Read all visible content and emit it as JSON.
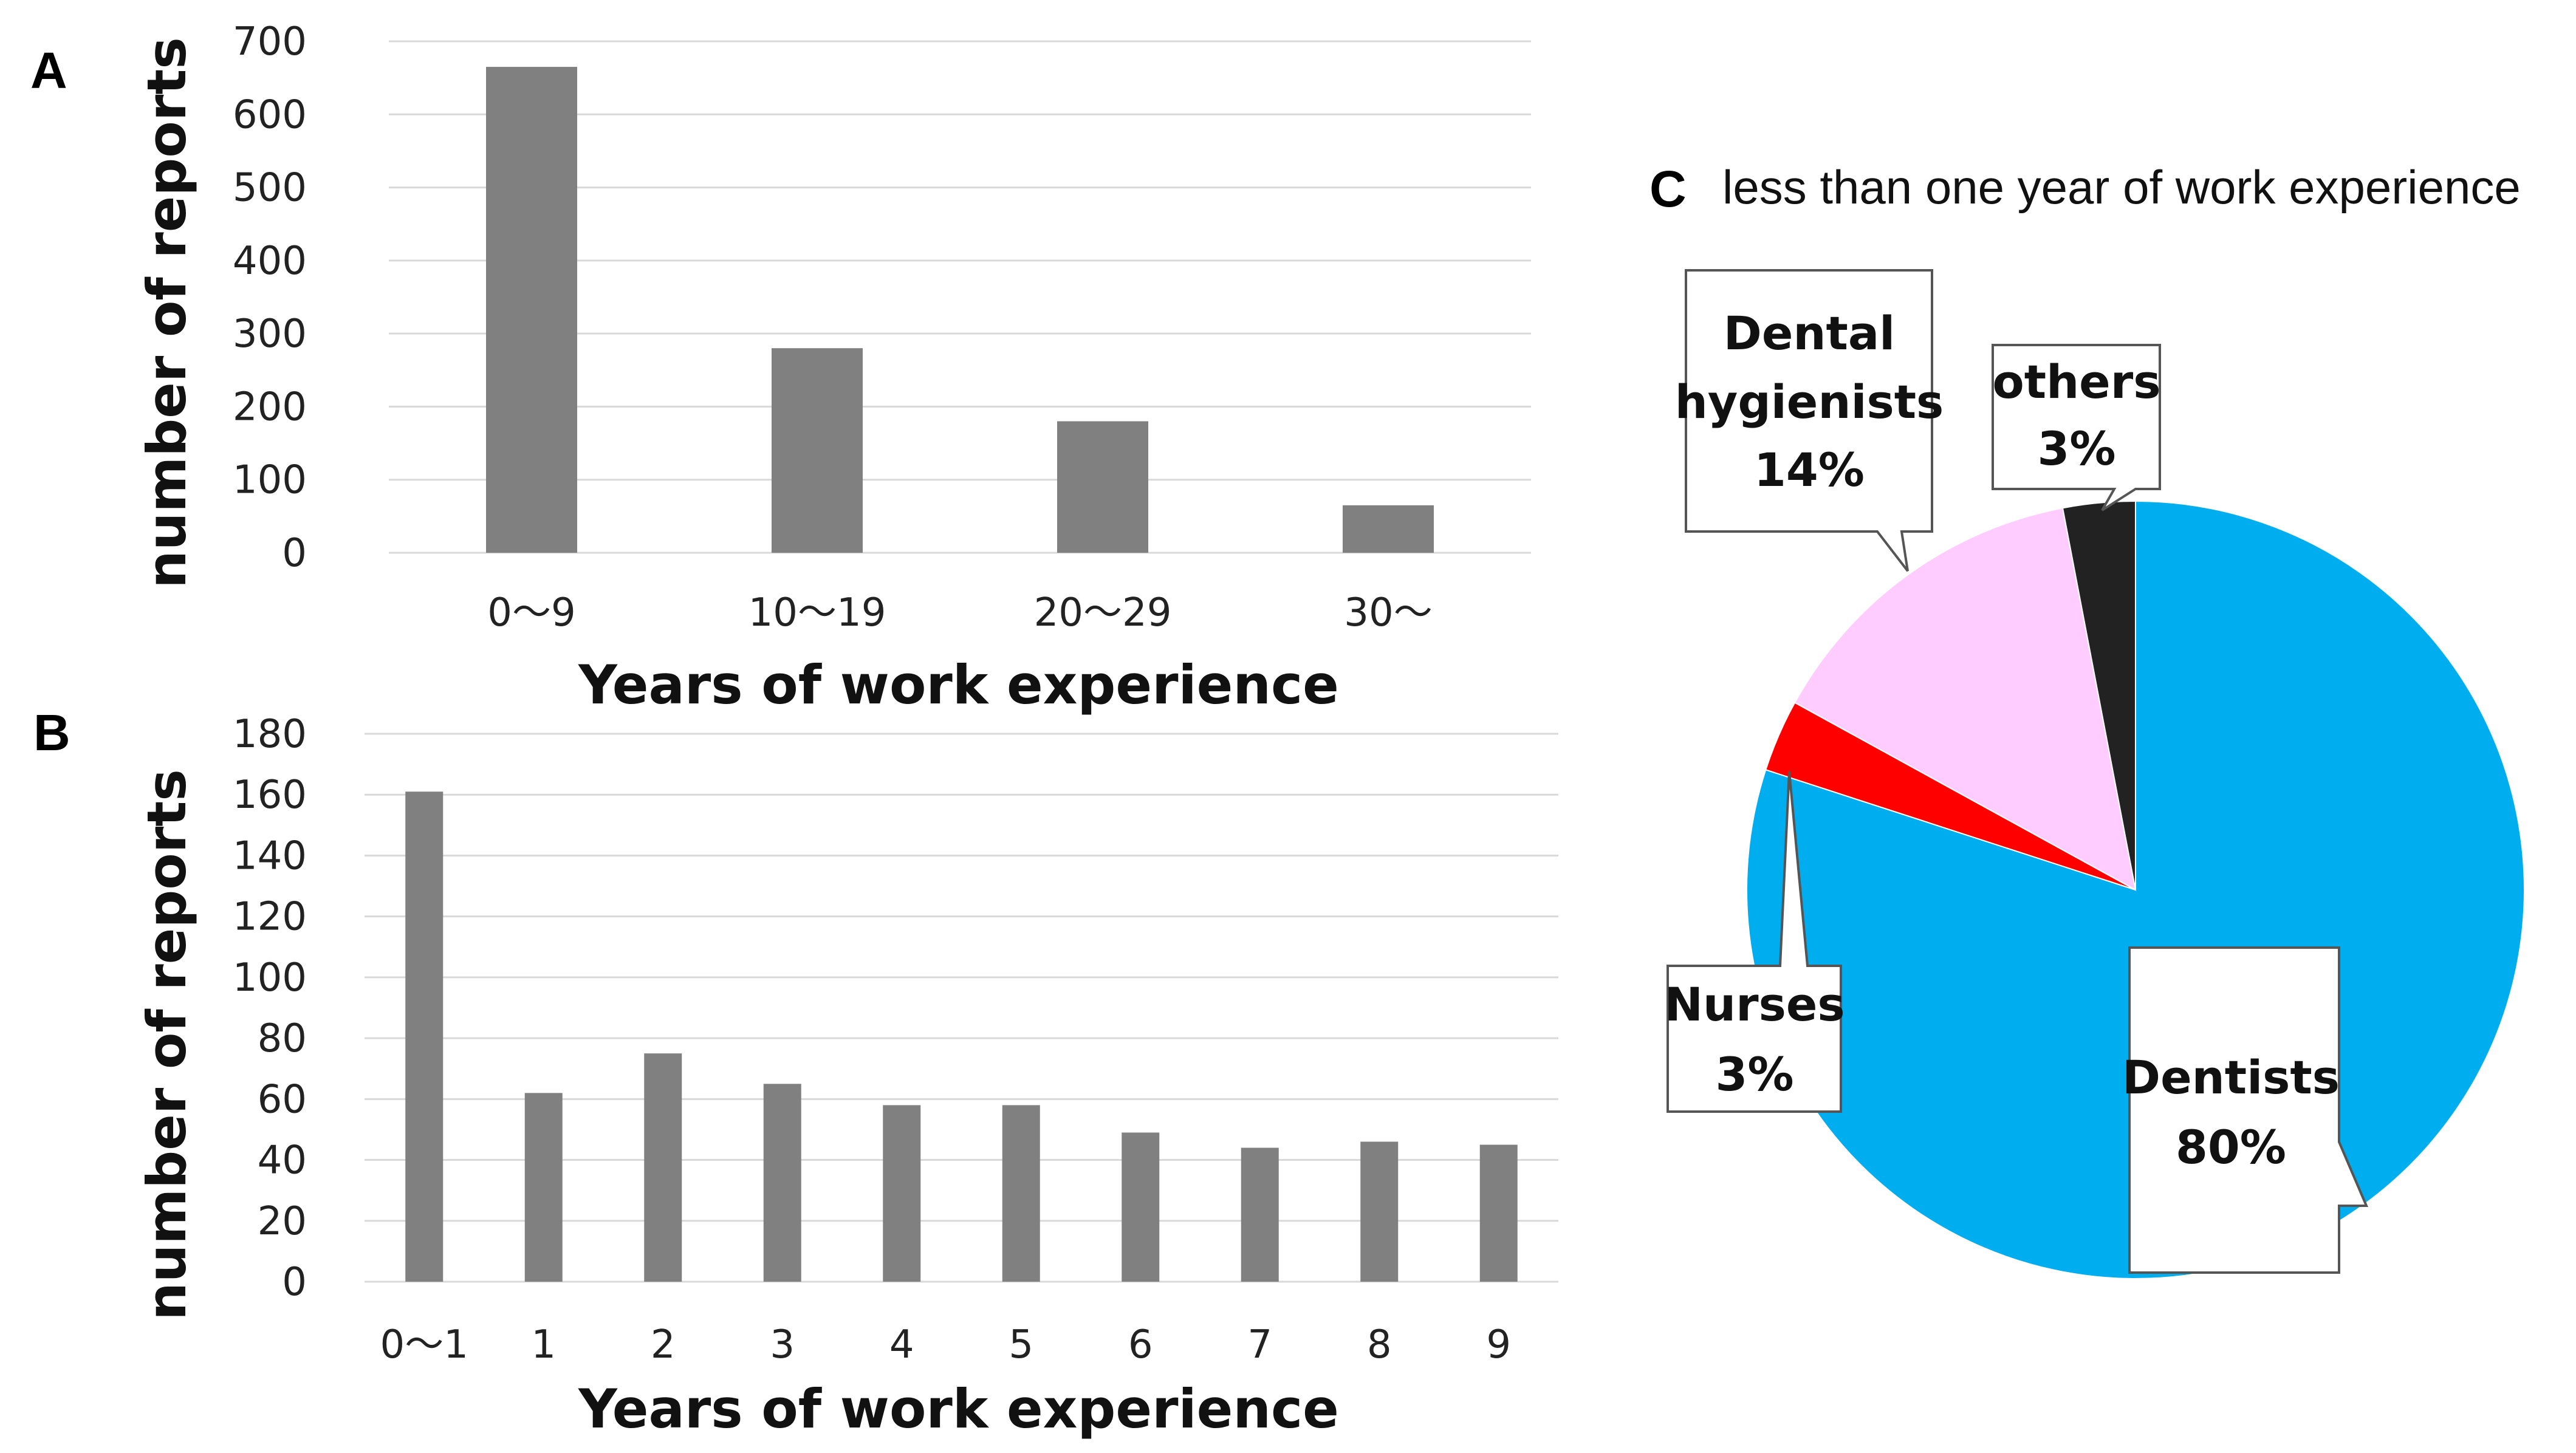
{
  "chart_data": [
    {
      "panel": "A",
      "type": "bar",
      "categories": [
        "0〜9",
        "10〜19",
        "20〜29",
        "30〜"
      ],
      "values": [
        665,
        280,
        180,
        65
      ],
      "xlabel": "Years of work experience",
      "ylabel": "number  of  reports",
      "ylim": [
        0,
        700
      ],
      "yticks": [
        0,
        100,
        200,
        300,
        400,
        500,
        600,
        700
      ],
      "grid": true,
      "color": "#808080"
    },
    {
      "panel": "B",
      "type": "bar",
      "categories": [
        "0〜1",
        "1",
        "2",
        "3",
        "4",
        "5",
        "6",
        "7",
        "8",
        "9"
      ],
      "values": [
        161,
        62,
        75,
        65,
        58,
        58,
        49,
        44,
        46,
        45
      ],
      "xlabel": "Years of work experience",
      "ylabel": "number  of  reports",
      "ylim": [
        0,
        180
      ],
      "yticks": [
        0,
        20,
        40,
        60,
        80,
        100,
        120,
        140,
        160,
        180
      ],
      "grid": true,
      "color": "#808080"
    },
    {
      "panel": "C",
      "type": "pie",
      "title": "less than one year of work experience",
      "slices": [
        {
          "label": "Dentists",
          "value": 80,
          "pct_label": "80%",
          "color": "#00AEEF"
        },
        {
          "label": "Nurses",
          "value": 3,
          "pct_label": "3%",
          "color": "#FF0000"
        },
        {
          "label": "Dental hygienists",
          "line1": "Dental",
          "line2": "hygienists",
          "value": 14,
          "pct_label": "14%",
          "color": "#FFCCFF"
        },
        {
          "label": "others",
          "value": 3,
          "pct_label": "3%",
          "color": "#222222"
        }
      ]
    }
  ],
  "panels": {
    "A": {
      "letter": "A"
    },
    "B": {
      "letter": "B"
    },
    "C": {
      "letter": "C"
    }
  }
}
